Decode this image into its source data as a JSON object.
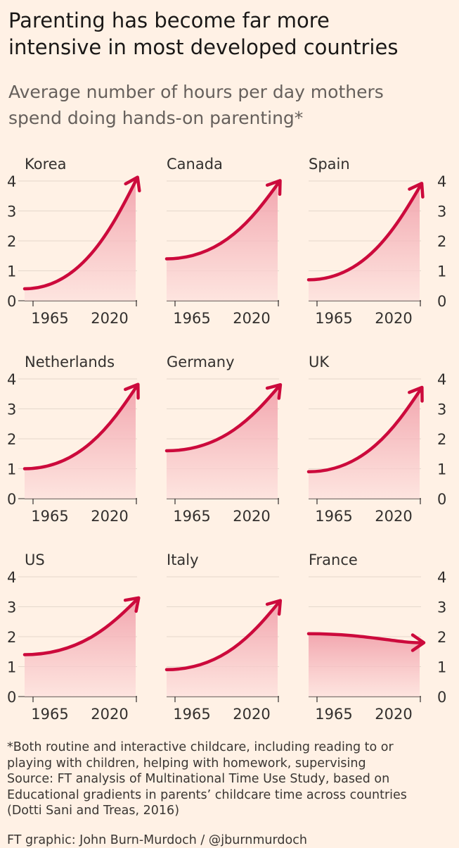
{
  "title": {
    "line1": "Parenting has become far more",
    "line2": "intensive in most developed countries"
  },
  "subtitle": {
    "line1": "Average number of hours per day mothers",
    "line2": "spend doing hands-on parenting*"
  },
  "colors": {
    "line": "#cc0a3c",
    "fill_top": "#f09aa6",
    "fill_bottom": "#fde0dd",
    "background": "#fff1e5",
    "grid": "#e4d8cc"
  },
  "chart_data": [
    {
      "type": "area",
      "title": "Korea",
      "x": [
        1965,
        2020
      ],
      "values": [
        0.4,
        4.0
      ],
      "x_ticks": [
        "1965",
        "2020"
      ],
      "y_ticks": [
        "0",
        "1",
        "2",
        "3",
        "4"
      ],
      "ylim": [
        0,
        4
      ],
      "y_axis_side": "left"
    },
    {
      "type": "area",
      "title": "Canada",
      "x": [
        1965,
        2020
      ],
      "values": [
        1.4,
        3.9
      ],
      "x_ticks": [
        "1965",
        "2020"
      ],
      "y_ticks": [],
      "ylim": [
        0,
        4
      ],
      "y_axis_side": "none"
    },
    {
      "type": "area",
      "title": "Spain",
      "x": [
        1965,
        2020
      ],
      "values": [
        0.7,
        3.8
      ],
      "x_ticks": [
        "1965",
        "2020"
      ],
      "y_ticks": [
        "0",
        "1",
        "2",
        "3",
        "4"
      ],
      "ylim": [
        0,
        4
      ],
      "y_axis_side": "right"
    },
    {
      "type": "area",
      "title": "Netherlands",
      "x": [
        1965,
        2020
      ],
      "values": [
        1.0,
        3.7
      ],
      "x_ticks": [
        "1965",
        "2020"
      ],
      "y_ticks": [
        "0",
        "1",
        "2",
        "3",
        "4"
      ],
      "ylim": [
        0,
        4
      ],
      "y_axis_side": "left"
    },
    {
      "type": "area",
      "title": "Germany",
      "x": [
        1965,
        2020
      ],
      "values": [
        1.6,
        3.7
      ],
      "x_ticks": [
        "1965",
        "2020"
      ],
      "y_ticks": [],
      "ylim": [
        0,
        4
      ],
      "y_axis_side": "none"
    },
    {
      "type": "area",
      "title": "UK",
      "x": [
        1965,
        2020
      ],
      "values": [
        0.9,
        3.6
      ],
      "x_ticks": [
        "1965",
        "2020"
      ],
      "y_ticks": [
        "0",
        "1",
        "2",
        "3",
        "4"
      ],
      "ylim": [
        0,
        4
      ],
      "y_axis_side": "right"
    },
    {
      "type": "area",
      "title": "US",
      "x": [
        1965,
        2020
      ],
      "values": [
        1.4,
        3.2
      ],
      "x_ticks": [
        "1965",
        "2020"
      ],
      "y_ticks": [
        "0",
        "1",
        "2",
        "3",
        "4"
      ],
      "ylim": [
        0,
        4
      ],
      "y_axis_side": "left"
    },
    {
      "type": "area",
      "title": "Italy",
      "x": [
        1965,
        2020
      ],
      "values": [
        0.9,
        3.1
      ],
      "x_ticks": [
        "1965",
        "2020"
      ],
      "y_ticks": [],
      "ylim": [
        0,
        4
      ],
      "y_axis_side": "none"
    },
    {
      "type": "area",
      "title": "France",
      "x": [
        1965,
        2020
      ],
      "values": [
        2.1,
        1.8
      ],
      "x_ticks": [
        "1965",
        "2020"
      ],
      "y_ticks": [
        "0",
        "1",
        "2",
        "3",
        "4"
      ],
      "ylim": [
        0,
        4
      ],
      "y_axis_side": "right"
    }
  ],
  "footnote": {
    "line1": "*Both routine and interactive childcare, including reading to or",
    "line2": "playing with children, helping with homework, supervising",
    "line3": "Source: FT analysis of Multinational Time Use Study, based on",
    "line4": "Educational gradients in parents’ childcare time across countries",
    "line5": "(Dotti Sani and Treas, 2016)",
    "credit": "FT graphic: John Burn-Murdoch / @jburnmurdoch"
  }
}
